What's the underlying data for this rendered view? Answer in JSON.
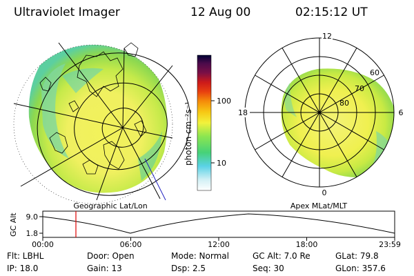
{
  "header": {
    "title": "Ultraviolet Imager",
    "date": "12 Aug 00",
    "time": "02:15:12 UT"
  },
  "left_panel": {
    "caption": "Geographic Lat/Lon"
  },
  "right_panel": {
    "caption": "Apex MLat/MLT",
    "mlt_labels": [
      "12",
      "18",
      "6",
      "0"
    ],
    "mlat_labels": [
      "60",
      "70",
      "80"
    ]
  },
  "colorbar": {
    "unit_label": "photon cm⁻²s⁻¹",
    "tick_labels": [
      "100",
      "10"
    ],
    "colors": [
      "#000033",
      "#1e0a3c",
      "#4b0a4b",
      "#7a0f46",
      "#a01428",
      "#cc1a1a",
      "#e84010",
      "#f58c0a",
      "#f7c814",
      "#f2f23c",
      "#c8f03c",
      "#8ce650",
      "#46d278",
      "#37c8b4",
      "#5ad2e6",
      "#a0e1f0",
      "#d2f0f5",
      "#ffffff"
    ]
  },
  "timeline": {
    "y_axis_label": "GC Alt",
    "y_ticks": [
      "9.0",
      "1.8"
    ],
    "x_ticks": [
      "00:00",
      "06:00",
      "12:00",
      "18:00",
      "23:59"
    ],
    "marker_color": "#dd0000"
  },
  "footer": {
    "row1": [
      "Flt: LBHL",
      "Door: Open",
      "Mode: Normal",
      "GC Alt: 7.0 Re",
      "GLat:  79.8"
    ],
    "row2": [
      "IP: 18.0",
      "Gain: 13",
      "Dsp:    2.5",
      "Seq: 30",
      "GLon: 357.6"
    ]
  }
}
